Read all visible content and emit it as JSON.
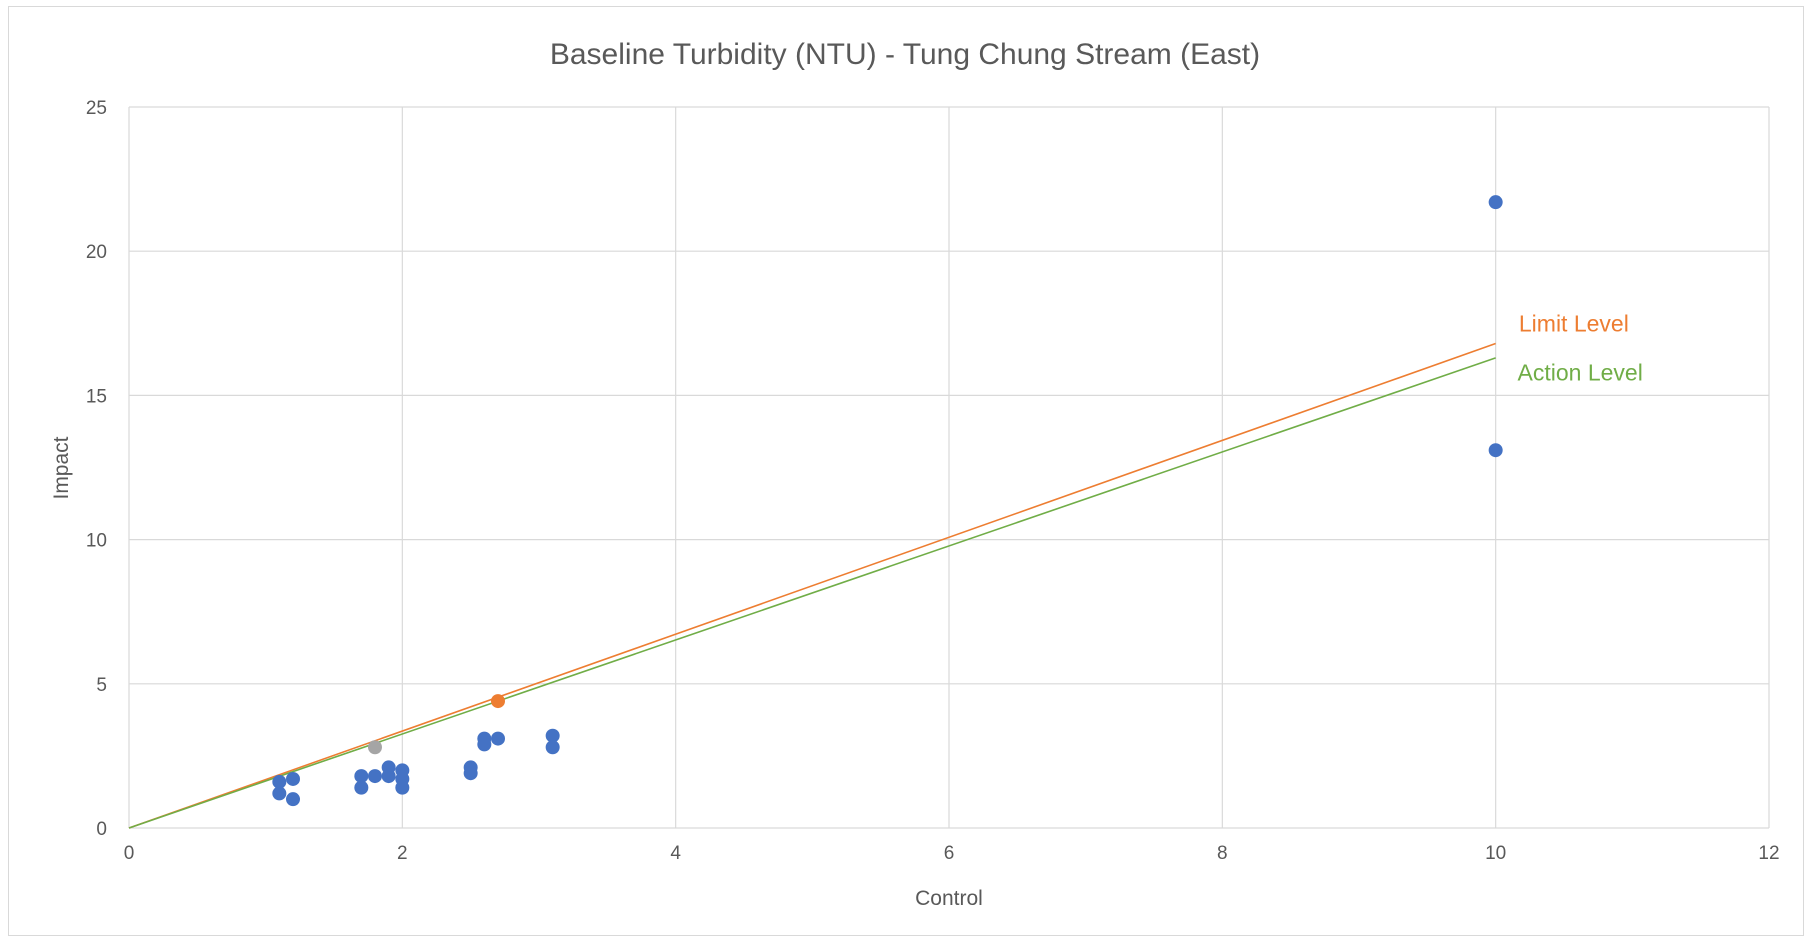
{
  "chart_data": {
    "type": "scatter",
    "title": "Baseline Turbidity (NTU) - Tung Chung Stream (East)",
    "xlabel": "Control",
    "ylabel": "Impact",
    "xlim": [
      0,
      12
    ],
    "ylim": [
      0,
      25
    ],
    "x_ticks": [
      0,
      2,
      4,
      6,
      8,
      10,
      12
    ],
    "y_ticks": [
      0,
      5,
      10,
      15,
      20,
      25
    ],
    "grid": true,
    "colors": {
      "points": "#4472C4",
      "highlight_action": "#A5A5A5",
      "highlight_limit": "#ED7D31",
      "limit_line": "#ED7D31",
      "action_line": "#70AD47",
      "grid": "#d9d9d9",
      "text": "#595959"
    },
    "points": [
      {
        "x": 1.1,
        "y": 1.6
      },
      {
        "x": 1.1,
        "y": 1.2
      },
      {
        "x": 1.2,
        "y": 1.7
      },
      {
        "x": 1.2,
        "y": 1.0
      },
      {
        "x": 1.7,
        "y": 1.8
      },
      {
        "x": 1.7,
        "y": 1.4
      },
      {
        "x": 1.8,
        "y": 1.8
      },
      {
        "x": 1.9,
        "y": 2.1
      },
      {
        "x": 1.9,
        "y": 1.8
      },
      {
        "x": 2.0,
        "y": 2.0
      },
      {
        "x": 2.0,
        "y": 1.7
      },
      {
        "x": 2.0,
        "y": 1.4
      },
      {
        "x": 2.5,
        "y": 2.1
      },
      {
        "x": 2.5,
        "y": 1.9
      },
      {
        "x": 2.6,
        "y": 3.1
      },
      {
        "x": 2.6,
        "y": 2.9
      },
      {
        "x": 2.7,
        "y": 3.1
      },
      {
        "x": 3.1,
        "y": 3.2
      },
      {
        "x": 3.1,
        "y": 2.8
      },
      {
        "x": 10.0,
        "y": 21.7
      },
      {
        "x": 10.0,
        "y": 13.1
      }
    ],
    "highlight_points": [
      {
        "x": 1.8,
        "y": 2.8,
        "color": "#A5A5A5"
      },
      {
        "x": 2.7,
        "y": 4.4,
        "color": "#ED7D31"
      }
    ],
    "lines": [
      {
        "name": "Limit Level",
        "color": "#ED7D31",
        "x": [
          0,
          10
        ],
        "y": [
          0,
          16.8
        ]
      },
      {
        "name": "Action Level",
        "color": "#70AD47",
        "x": [
          0,
          10
        ],
        "y": [
          0,
          16.3
        ]
      }
    ],
    "annotations": [
      {
        "text": "Limit Level",
        "color": "#ED7D31",
        "x": 10.17,
        "y": 17.5
      },
      {
        "text": "Action Level",
        "color": "#70AD47",
        "x": 10.16,
        "y": 15.8
      }
    ]
  }
}
